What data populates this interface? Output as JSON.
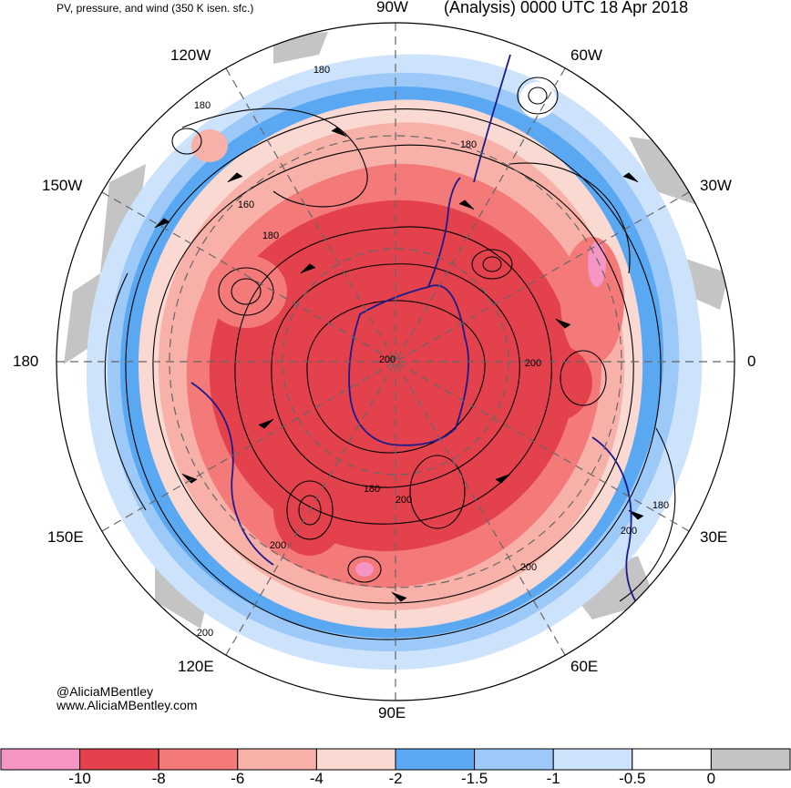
{
  "header": {
    "left": "PV, pressure, and wind (350 K isen. sfc.)",
    "right": "(Analysis) 0000 UTC 18 Apr 2018"
  },
  "longitude_labels": {
    "top": "90W",
    "upper_left": "120W",
    "upper_right": "60W",
    "left_upper": "150W",
    "right_upper": "30W",
    "left": "180",
    "right": "0",
    "left_lower": "150E",
    "right_lower": "30E",
    "lower_left": "120E",
    "lower_right": "60E",
    "bottom": "90E"
  },
  "contour_labels": [
    "180",
    "180",
    "180",
    "160",
    "180",
    "200",
    "200",
    "180",
    "200",
    "200",
    "200",
    "180",
    "200",
    "200"
  ],
  "credits": {
    "handle": "@AliciaMBentley",
    "website": "www.AliciaMBentley.com"
  },
  "colorbar": {
    "colors": [
      "#f595c4",
      "#e3424c",
      "#f47a7a",
      "#f8b1a9",
      "#fbd9d3",
      "#5aa8f2",
      "#9dc9f8",
      "#cde3fb",
      "#ffffff",
      "#c4c4c4"
    ],
    "ticks": [
      "-10",
      "-8",
      "-6",
      "-4",
      "-2",
      "-1.5",
      "-1",
      "-0.5",
      "0"
    ]
  },
  "palette": {
    "strong_pv": "#e3424c",
    "moderate_pv": "#f47a7a",
    "weak_pv": "#f8b1a9",
    "weaker_pv": "#fbd9d3",
    "blue_strong": "#5aa8f2",
    "blue_mid": "#9dc9f8",
    "blue_light": "#cde3fb",
    "grey": "#c4c4c4",
    "coastline": "#1a1a8c"
  }
}
